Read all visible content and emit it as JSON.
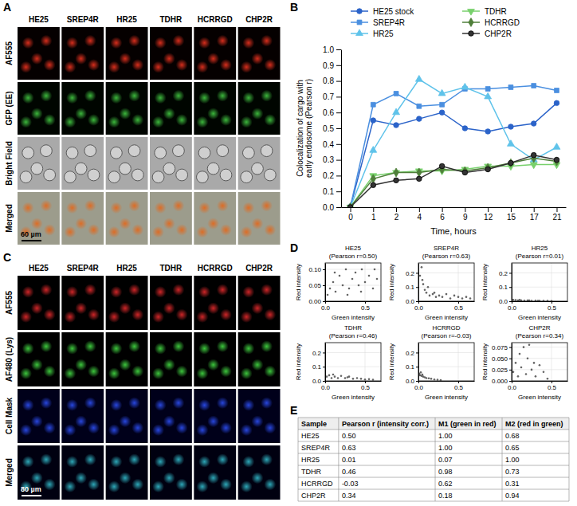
{
  "panel_labels": [
    "A",
    "B",
    "C",
    "D",
    "E"
  ],
  "image_panels": [
    {
      "columns": [
        "HE25",
        "SREP4R",
        "HR25",
        "TDHR",
        "HCRRGD",
        "CHP2R"
      ],
      "rows": [
        "AF555",
        "GFP (EE)",
        "Bright Field",
        "Merged"
      ],
      "scale_bar": "60 µm"
    },
    {
      "columns": [
        "HE25",
        "SREP4R",
        "HR25",
        "TDHR",
        "HCRRGD",
        "CHP2R"
      ],
      "rows": [
        "AF555",
        "AF480 (Lys)",
        "Cell Mask",
        "Merged"
      ],
      "scale_bar": "80 µm"
    }
  ],
  "chart_data": [
    {
      "type": "line",
      "x_label": "Time, hours",
      "y_label": "Colocalization of cargo with early endosome (Pearson r)",
      "categories": [
        "0",
        "1",
        "2",
        "4",
        "6",
        "9",
        "12",
        "15",
        "17",
        "21"
      ],
      "ylim": [
        0,
        1
      ],
      "yticks": [
        {
          "value": 0,
          "label": "0.0"
        },
        0.1,
        0.2,
        0.3,
        0.4,
        0.5,
        0.6,
        0.7,
        0.8,
        0.9,
        {
          "value": 1,
          "label": "1.0"
        }
      ],
      "legend": "top",
      "series": [
        {
          "name": "HE25 stock",
          "color": "#2b63c9",
          "marker": "circle",
          "line_style": "solid",
          "values": [
            0,
            0.55,
            0.52,
            0.56,
            0.6,
            0.5,
            0.48,
            0.51,
            0.53,
            0.66
          ]
        },
        {
          "name": "SREP4R",
          "color": "#4a8fe0",
          "marker": "square",
          "line_style": "solid",
          "values": [
            0,
            0.65,
            0.72,
            0.64,
            0.65,
            0.75,
            0.75,
            0.76,
            0.77,
            0.74
          ]
        },
        {
          "name": "HR25",
          "color": "#5fc3ea",
          "marker": "triangle",
          "line_style": "solid",
          "values": [
            0,
            0.36,
            0.6,
            0.81,
            0.72,
            0.76,
            0.7,
            0.4,
            0.3,
            0.38
          ]
        },
        {
          "name": "TDHR",
          "color": "#78d16c",
          "marker": "triangle-down",
          "line_style": "solid",
          "values": [
            0,
            0.2,
            0.22,
            0.23,
            0.23,
            0.24,
            0.26,
            0.26,
            0.27,
            0.27
          ]
        },
        {
          "name": "HCRRGD",
          "color": "#4f7f3a",
          "marker": "diamond",
          "line_style": "solid",
          "values": [
            0,
            0.18,
            0.22,
            0.22,
            0.24,
            0.23,
            0.25,
            0.28,
            0.31,
            0.29
          ]
        },
        {
          "name": "CHP2R",
          "color": "#333333",
          "marker": "circle",
          "line_style": "solid",
          "values": [
            0,
            0.14,
            0.17,
            0.18,
            0.26,
            0.22,
            0.24,
            0.28,
            0.33,
            0.3
          ]
        }
      ]
    },
    {
      "type": "scatter",
      "title": "HE25",
      "subtitle": "(Pearson r=0.50)",
      "x_label": "Green intensity",
      "y_label": "Red intensity",
      "color": "#333333",
      "marker": "point",
      "grid": true,
      "xlim": [
        0,
        0.7
      ],
      "xticks": [
        {
          "value": 0,
          "label": "0.0"
        },
        0.5
      ],
      "ylim": [
        0,
        0.12
      ],
      "yticks": [
        {
          "value": 0,
          "label": "0.00"
        },
        0.05,
        {
          "value": 0.1,
          "label": "0.10"
        }
      ],
      "x": [
        0.03,
        0.06,
        0.1,
        0.13,
        0.18,
        0.22,
        0.26,
        0.3,
        0.34,
        0.38,
        0.42,
        0.46,
        0.5,
        0.55,
        0.6,
        0.65,
        0.12,
        0.28,
        0.45,
        0.62
      ],
      "values": [
        0.02,
        0.04,
        0.06,
        0.03,
        0.08,
        0.05,
        0.1,
        0.04,
        0.07,
        0.09,
        0.05,
        0.1,
        0.06,
        0.08,
        0.04,
        0.07,
        0.09,
        0.02,
        0.03,
        0.1
      ]
    },
    {
      "type": "scatter",
      "title": "SREP4R",
      "subtitle": "(Pearson r=0.63)",
      "x_label": "Green intensity",
      "y_label": "Red intensity",
      "color": "#333333",
      "marker": "point",
      "grid": true,
      "xlim": [
        0,
        0.7
      ],
      "xticks": [
        {
          "value": 0,
          "label": "0.0"
        },
        0.5
      ],
      "ylim": [
        0,
        0.27
      ],
      "yticks": [
        {
          "value": 0,
          "label": "0.0"
        },
        0.1,
        0.2
      ],
      "x": [
        0.02,
        0.04,
        0.06,
        0.08,
        0.1,
        0.14,
        0.18,
        0.22,
        0.26,
        0.3,
        0.35,
        0.4,
        0.45,
        0.5,
        0.55,
        0.6,
        0.65,
        0.05,
        0.12,
        0.2
      ],
      "values": [
        0.18,
        0.24,
        0.12,
        0.08,
        0.06,
        0.04,
        0.05,
        0.03,
        0.04,
        0.03,
        0.05,
        0.02,
        0.04,
        0.03,
        0.02,
        0.03,
        0.02,
        0.15,
        0.1,
        0.06
      ]
    },
    {
      "type": "scatter",
      "title": "HR25",
      "subtitle": "(Pearson r=0.01)",
      "x_label": "Green intensity",
      "y_label": "Red intensity",
      "color": "#333333",
      "marker": "point",
      "grid": true,
      "xlim": [
        0,
        0.7
      ],
      "xticks": [
        {
          "value": 0,
          "label": "0.0"
        },
        0.5
      ],
      "ylim": [
        0,
        0.27
      ],
      "yticks": [
        {
          "value": 0,
          "label": "0.0"
        },
        0.1,
        0.2
      ],
      "x": [
        0.02,
        0.05,
        0.08,
        0.12,
        0.16,
        0.2,
        0.25,
        0.3,
        0.35,
        0.4,
        0.45,
        0.5,
        0.1,
        0.22,
        0.33
      ],
      "values": [
        0.01,
        0.008,
        0.006,
        0.005,
        0.004,
        0.006,
        0.003,
        0.004,
        0.002,
        0.003,
        0.002,
        0.001,
        0.009,
        0.005,
        0.002
      ]
    },
    {
      "type": "scatter",
      "title": "TDHR",
      "subtitle": "(Pearson r=0.46)",
      "x_label": "Green intensity",
      "y_label": "Red intensity",
      "color": "#333333",
      "marker": "point",
      "grid": true,
      "xlim": [
        0,
        0.7
      ],
      "xticks": [
        {
          "value": 0,
          "label": "0.0"
        },
        0.5
      ],
      "ylim": [
        0,
        0.27
      ],
      "yticks": [
        {
          "value": 0,
          "label": "0.0"
        },
        0.1,
        0.2
      ],
      "x": [
        0.02,
        0.05,
        0.08,
        0.12,
        0.16,
        0.2,
        0.25,
        0.3,
        0.35,
        0.4,
        0.45,
        0.5,
        0.55,
        0.6,
        0.1,
        0.28
      ],
      "values": [
        0.03,
        0.04,
        0.02,
        0.03,
        0.02,
        0.035,
        0.02,
        0.03,
        0.015,
        0.02,
        0.015,
        0.01,
        0.012,
        0.008,
        0.045,
        0.025
      ]
    },
    {
      "type": "scatter",
      "title": "HCRRGD",
      "subtitle": "(Pearson r=-0.03)",
      "x_label": "Green intensity",
      "y_label": "Red intensity",
      "color": "#333333",
      "marker": "point",
      "grid": true,
      "xlim": [
        0,
        0.7
      ],
      "xticks": [
        {
          "value": 0,
          "label": "0.0"
        },
        0.5
      ],
      "ylim": [
        0,
        0.27
      ],
      "yticks": [
        {
          "value": 0,
          "label": "0.0"
        },
        0.1,
        0.2
      ],
      "x": [
        0.01,
        0.02,
        0.04,
        0.06,
        0.08,
        0.1,
        0.13,
        0.16,
        0.2,
        0.24,
        0.28,
        0.03,
        0.05
      ],
      "values": [
        0.05,
        0.04,
        0.035,
        0.03,
        0.025,
        0.02,
        0.018,
        0.015,
        0.01,
        0.008,
        0.005,
        0.06,
        0.045
      ]
    },
    {
      "type": "scatter",
      "title": "CHP2R",
      "subtitle": "(Pearson r=0.34)",
      "x_label": "Green intensity",
      "y_label": "Red intensity",
      "color": "#333333",
      "marker": "point",
      "grid": true,
      "xlim": [
        0,
        0.7
      ],
      "xticks": [
        {
          "value": 0,
          "label": "0.0"
        },
        0.5
      ],
      "ylim": [
        0,
        0.085
      ],
      "yticks": [
        {
          "value": 0,
          "label": "0.000"
        },
        0.025,
        {
          "value": 0.05,
          "label": "0.050"
        },
        0.075
      ],
      "x": [
        0.02,
        0.05,
        0.08,
        0.1,
        0.12,
        0.15,
        0.18,
        0.2,
        0.22,
        0.25,
        0.28,
        0.3,
        0.35,
        0.4,
        0.45
      ],
      "values": [
        0.02,
        0.04,
        0.01,
        0.06,
        0.03,
        0.075,
        0.015,
        0.05,
        0.08,
        0.025,
        0.04,
        0.01,
        0.035,
        0.02,
        0.005
      ]
    }
  ],
  "table": {
    "columns": [
      "Sample",
      "Pearson r (intensity corr.)",
      "M1 (green in red)",
      "M2 (red in green)"
    ],
    "rows": [
      [
        "HE25",
        "0.50",
        "1.00",
        "0.68"
      ],
      [
        "SREP4R",
        "0.63",
        "1.00",
        "0.65"
      ],
      [
        "HR25",
        "0.01",
        "0.07",
        "1.00"
      ],
      [
        "TDHR",
        "0.46",
        "0.98",
        "0.73"
      ],
      [
        "HCRRGD",
        "-0.03",
        "0.62",
        "0.31"
      ],
      [
        "CHP2R",
        "0.34",
        "0.18",
        "0.94"
      ]
    ]
  }
}
